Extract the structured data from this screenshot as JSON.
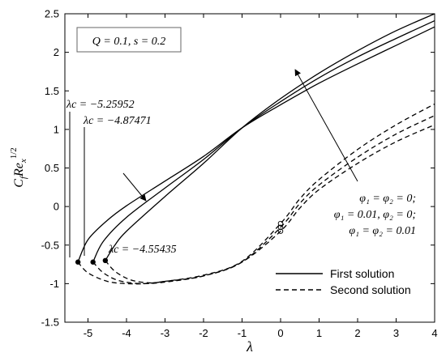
{
  "chart_data": {
    "type": "line",
    "xlabel": "λ",
    "ylabel": "C_f Re_x^{1/2}",
    "xlim": [
      -5.6,
      4
    ],
    "ylim": [
      -1.5,
      2.5
    ],
    "x_ticks": [
      -5,
      -4,
      -3,
      -2,
      -1,
      0,
      1,
      2,
      3,
      4
    ],
    "y_ticks": [
      -1.5,
      -1,
      -0.5,
      0,
      0.5,
      1,
      1.5,
      2,
      2.5
    ],
    "x_tick_labels": [
      "-5",
      "-4",
      "-3",
      "-2",
      "-1",
      "0",
      "1",
      "2",
      "3",
      "4"
    ],
    "y_tick_labels": [
      "-1.5",
      "-1",
      "-0.5",
      "0",
      "0.5",
      "1",
      "1.5",
      "2",
      "2.5"
    ],
    "grid": false,
    "legend_position": "bottom-right",
    "legend": [
      {
        "label": "First solution",
        "style": "solid"
      },
      {
        "label": "Second solution",
        "style": "dashed"
      }
    ],
    "param_box": "Q = 0.1, s = 0.2",
    "cases_note": [
      "φ₁ = φ₂ = 0;",
      "φ₁ = 0.01, φ₂ = 0;",
      "φ₁ = φ₂ = 0.01"
    ],
    "critical_labels": [
      "λc = −5.25952",
      "λc = −4.87471",
      "λc = −4.55435"
    ],
    "series": [
      {
        "style": "solid",
        "critical_point": [
          -5.26,
          -0.72
        ],
        "points": [
          [
            -5.26,
            -0.72
          ],
          [
            -5.0,
            -0.43
          ],
          [
            -4.5,
            -0.18
          ],
          [
            -4.0,
            0.01
          ],
          [
            -3.0,
            0.33
          ],
          [
            -2.0,
            0.65
          ],
          [
            -1.0,
            1.02
          ],
          [
            0.0,
            1.32
          ],
          [
            1.0,
            1.6
          ],
          [
            2.0,
            1.85
          ],
          [
            3.0,
            2.09
          ],
          [
            4.0,
            2.33
          ]
        ]
      },
      {
        "style": "solid",
        "critical_point": [
          -4.87,
          -0.72
        ],
        "points": [
          [
            -4.87,
            -0.72
          ],
          [
            -4.6,
            -0.45
          ],
          [
            -4.0,
            -0.14
          ],
          [
            -3.0,
            0.24
          ],
          [
            -2.0,
            0.61
          ],
          [
            -1.0,
            1.02
          ],
          [
            0.0,
            1.36
          ],
          [
            1.0,
            1.67
          ],
          [
            2.0,
            1.94
          ],
          [
            3.0,
            2.18
          ],
          [
            4.0,
            2.41
          ]
        ]
      },
      {
        "style": "solid",
        "critical_point": [
          -4.55,
          -0.7
        ],
        "points": [
          [
            -4.55,
            -0.7
          ],
          [
            -4.3,
            -0.5
          ],
          [
            -4.0,
            -0.32
          ],
          [
            -3.0,
            0.13
          ],
          [
            -2.0,
            0.56
          ],
          [
            -1.0,
            1.02
          ],
          [
            0.0,
            1.4
          ],
          [
            1.0,
            1.73
          ],
          [
            2.0,
            2.02
          ],
          [
            3.0,
            2.28
          ],
          [
            4.0,
            2.5
          ]
        ]
      },
      {
        "style": "dashed",
        "points": [
          [
            -5.26,
            -0.72
          ],
          [
            -5.0,
            -0.86
          ],
          [
            -4.5,
            -0.97
          ],
          [
            -4.0,
            -1.0
          ],
          [
            -3.5,
            -1.0
          ],
          [
            -3.0,
            -0.98
          ],
          [
            -2.0,
            -0.9
          ],
          [
            -1.0,
            -0.72
          ],
          [
            0.0,
            -0.32
          ],
          [
            0.5,
            -0.02
          ],
          [
            1.0,
            0.22
          ],
          [
            2.0,
            0.56
          ],
          [
            3.0,
            0.84
          ],
          [
            4.0,
            1.06
          ]
        ]
      },
      {
        "style": "dashed",
        "points": [
          [
            -4.87,
            -0.72
          ],
          [
            -4.6,
            -0.86
          ],
          [
            -4.2,
            -0.96
          ],
          [
            -3.6,
            -1.0
          ],
          [
            -3.0,
            -0.97
          ],
          [
            -2.0,
            -0.9
          ],
          [
            -1.0,
            -0.72
          ],
          [
            0.0,
            -0.27
          ],
          [
            0.5,
            0.04
          ],
          [
            1.0,
            0.28
          ],
          [
            2.0,
            0.64
          ],
          [
            3.0,
            0.94
          ],
          [
            4.0,
            1.18
          ]
        ]
      },
      {
        "style": "dashed",
        "points": [
          [
            -4.55,
            -0.7
          ],
          [
            -4.3,
            -0.84
          ],
          [
            -3.9,
            -0.95
          ],
          [
            -3.4,
            -0.99
          ],
          [
            -3.0,
            -0.97
          ],
          [
            -2.0,
            -0.89
          ],
          [
            -1.0,
            -0.71
          ],
          [
            0.0,
            -0.22
          ],
          [
            0.5,
            0.1
          ],
          [
            1.0,
            0.35
          ],
          [
            2.0,
            0.74
          ],
          [
            3.0,
            1.06
          ],
          [
            4.0,
            1.33
          ]
        ]
      }
    ]
  }
}
